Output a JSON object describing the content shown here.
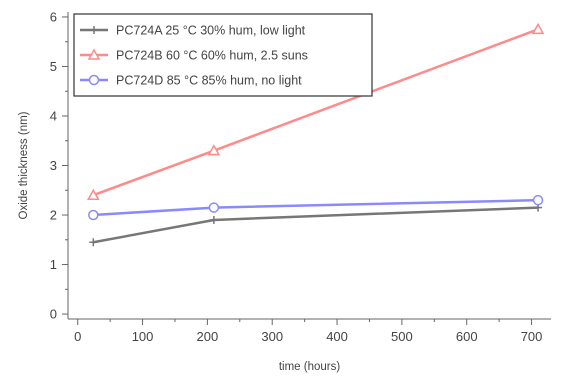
{
  "chart_data": {
    "type": "line",
    "xlabel": "time (hours)",
    "ylabel": "Oxide thickness (nm)",
    "xlim": [
      -15,
      730
    ],
    "ylim": [
      -0.1,
      6.1
    ],
    "x_ticks": [
      0,
      100,
      200,
      300,
      400,
      500,
      600,
      700
    ],
    "y_ticks": [
      0,
      1,
      2,
      3,
      4,
      5,
      6
    ],
    "grid": false,
    "legend_position": "top-left",
    "series": [
      {
        "name": "PC724A  25 °C 30% hum, low light",
        "color": "#777777",
        "marker": "plus",
        "x": [
          24,
          210,
          710
        ],
        "y": [
          1.45,
          1.9,
          2.15
        ]
      },
      {
        "name": "PC724B  60 °C 60% hum, 2.5 suns",
        "color": "#ff8a8a",
        "marker": "triangle",
        "x": [
          24,
          210,
          710
        ],
        "y": [
          2.4,
          3.3,
          5.75
        ]
      },
      {
        "name": "PC724D  85 °C 85% hum, no light",
        "color": "#8a8aff",
        "marker": "circle",
        "x": [
          24,
          210,
          710
        ],
        "y": [
          2.0,
          2.15,
          2.3
        ]
      }
    ]
  }
}
